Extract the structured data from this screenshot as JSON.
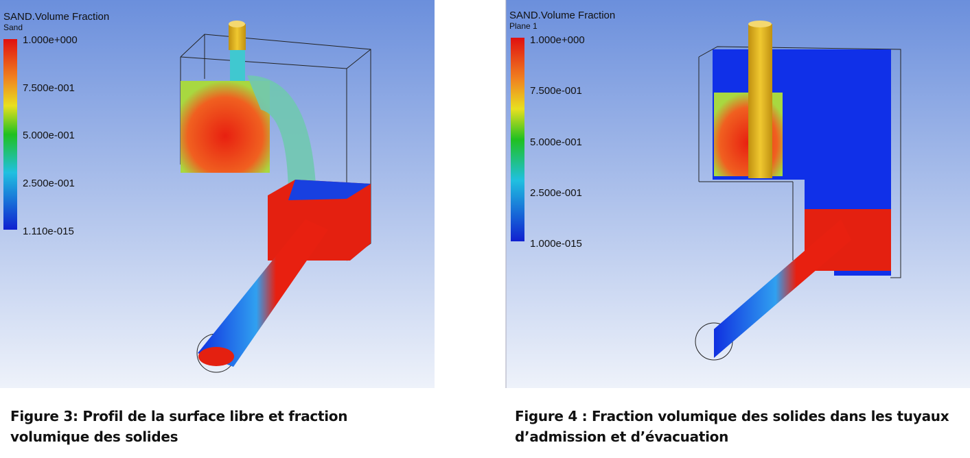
{
  "figures": [
    {
      "title": "SAND.Volume Fraction",
      "subtitle": "Sand",
      "legend_labels": [
        "1.000e+000",
        "7.500e-001",
        "5.000e-001",
        "2.500e-001",
        "1.110e-015"
      ],
      "caption": "Figure 3: Profil de la surface libre et fraction volumique des solides"
    },
    {
      "title": "SAND.Volume Fraction",
      "subtitle": "Plane 1",
      "legend_labels": [
        "1.000e+000",
        "7.500e-001",
        "5.000e-001",
        "2.500e-001",
        "1.000e-015"
      ],
      "caption": "Figure 4 : Fraction volumique des solides dans les tuyaux d’admission et d’évacuation"
    }
  ]
}
